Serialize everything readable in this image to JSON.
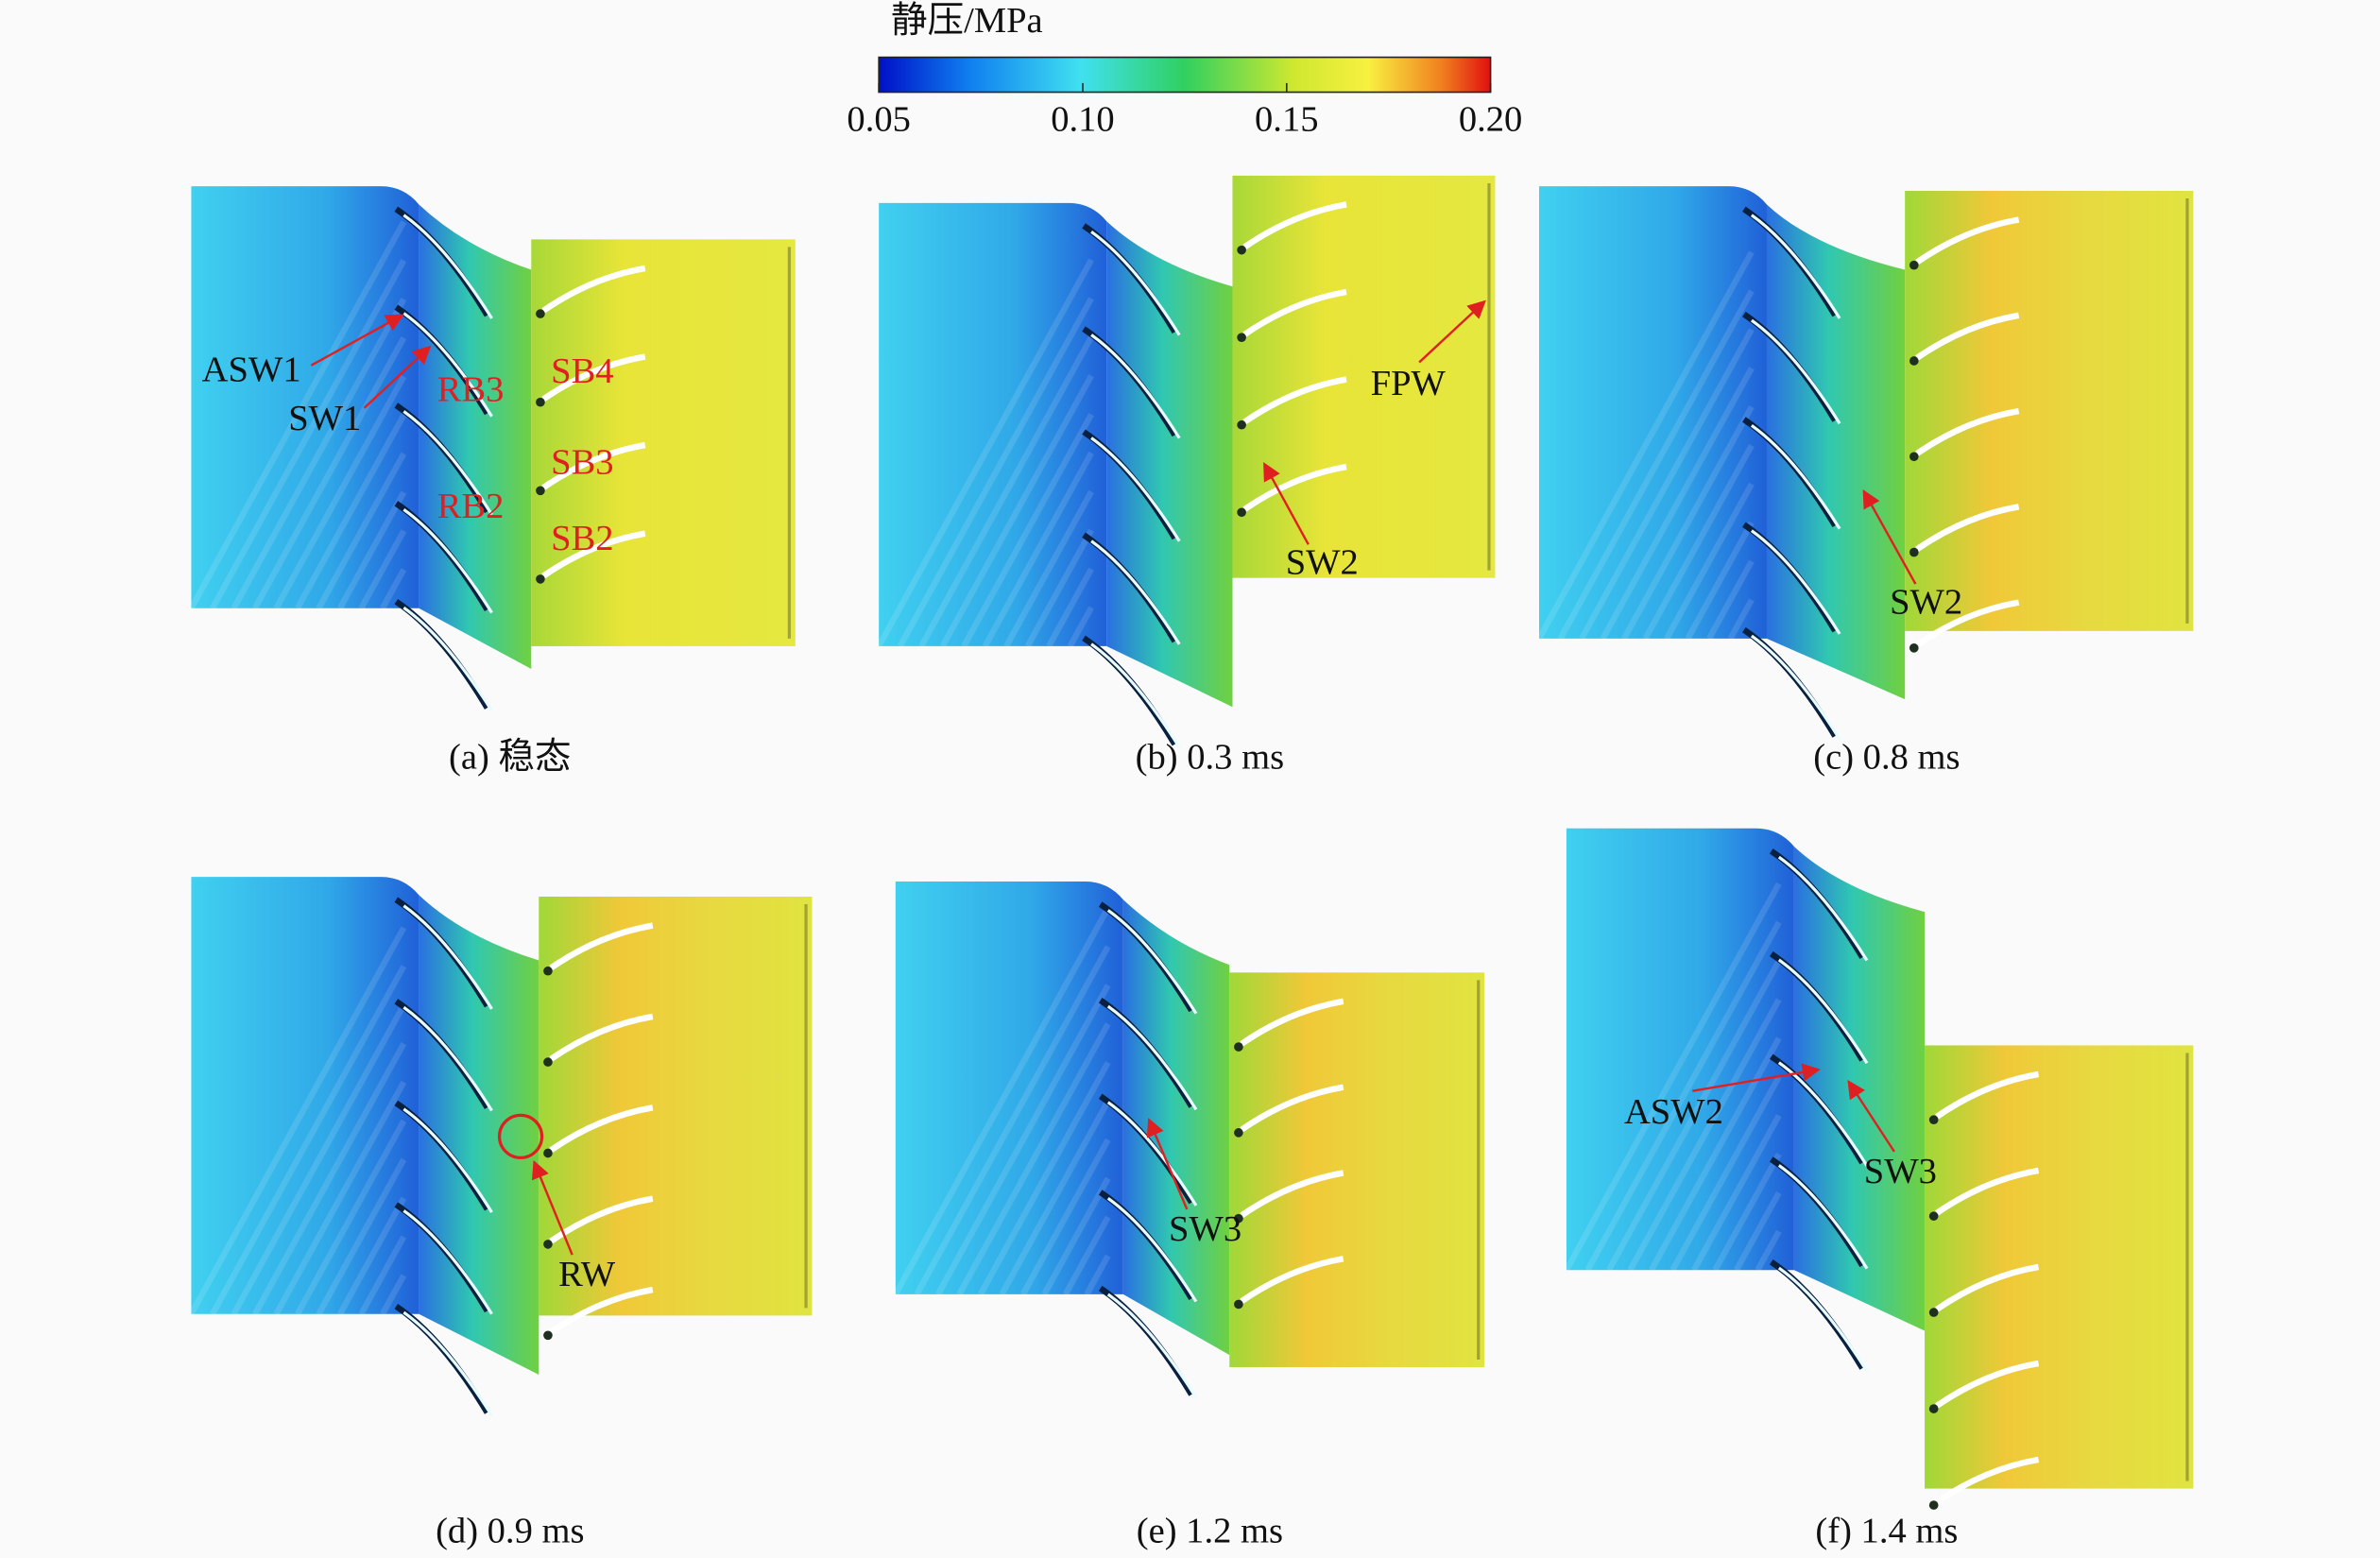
{
  "colorbar": {
    "title": "静压/MPa",
    "range": [
      0.05,
      0.2
    ],
    "ticks": [
      0.05,
      {
        "value": 0.1,
        "label": "0.10"
      },
      0.15,
      {
        "value": 0.2,
        "label": "0.20"
      }
    ]
  },
  "panels": [
    {
      "caption": "(a) 稳态",
      "annotations": [
        "ASW1",
        "SW1",
        "RB3",
        "SB4",
        "SB3",
        "RB2",
        "SB2"
      ]
    },
    {
      "caption": "(b) 0.3 ms",
      "annotations": [
        "FPW",
        "SW2"
      ]
    },
    {
      "caption": "(c) 0.8 ms",
      "annotations": [
        "SW2"
      ]
    },
    {
      "caption": "(d) 0.9 ms",
      "annotations": [
        "RW"
      ]
    },
    {
      "caption": "(e) 1.2 ms",
      "annotations": [
        "SW3"
      ]
    },
    {
      "caption": "(f) 1.4 ms",
      "annotations": [
        "ASW2",
        "SW3"
      ]
    }
  ]
}
